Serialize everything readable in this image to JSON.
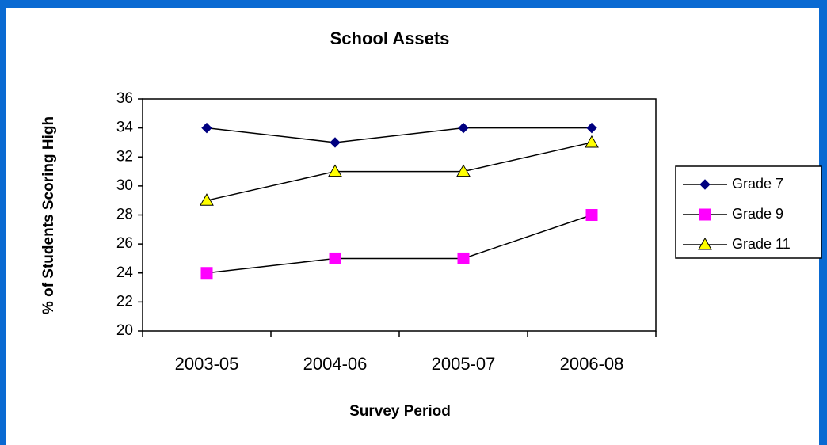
{
  "chart_data": {
    "type": "line",
    "title": "School Assets",
    "x_label": "Survey Period",
    "y_label": "% of Students Scoring High",
    "categories": [
      "2003-05",
      "2004-06",
      "2005-07",
      "2006-08"
    ],
    "series": [
      {
        "name": "Grade 7",
        "color": "#000080",
        "marker": "diamond",
        "values": [
          34,
          33,
          34,
          34
        ]
      },
      {
        "name": "Grade 9",
        "color": "#ff00ff",
        "marker": "square",
        "values": [
          24,
          25,
          25,
          28
        ]
      },
      {
        "name": "Grade 11",
        "color": "#ffff00",
        "marker": "triangle",
        "values": [
          29,
          31,
          31,
          33
        ]
      }
    ],
    "line_color": "#000000",
    "ylim": [
      20,
      36
    ],
    "yticks": [
      20,
      22,
      24,
      26,
      28,
      30,
      32,
      34,
      36
    ],
    "legend": "right",
    "grid": false
  }
}
